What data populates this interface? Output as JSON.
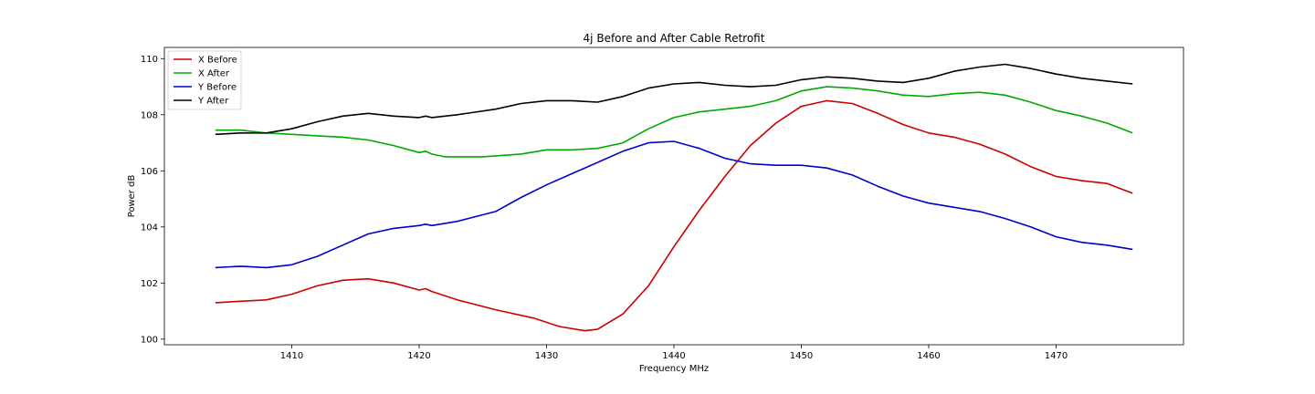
{
  "chart_data": {
    "type": "line",
    "title": "4j Before and After Cable Retrofit",
    "xlabel": "Frequency MHz",
    "ylabel": "Power dB",
    "xlim": [
      1400,
      1480
    ],
    "ylim": [
      99.8,
      110.4
    ],
    "xticks": [
      1410,
      1420,
      1430,
      1440,
      1450,
      1460,
      1470
    ],
    "yticks": [
      100,
      102,
      104,
      106,
      108,
      110
    ],
    "grid": false,
    "legend_position": "top-left",
    "series": [
      {
        "name": "X Before",
        "color": "#cc0000",
        "x": [
          1404,
          1406,
          1408,
          1410,
          1412,
          1414,
          1416,
          1418,
          1420,
          1420.5,
          1421,
          1423,
          1426,
          1429,
          1431,
          1433,
          1434,
          1436,
          1438,
          1440,
          1442,
          1444,
          1446,
          1448,
          1450,
          1452,
          1454,
          1456,
          1458,
          1460,
          1462,
          1464,
          1466,
          1468,
          1470,
          1472,
          1474,
          1476
        ],
        "y": [
          101.3,
          101.35,
          101.4,
          101.6,
          101.9,
          102.1,
          102.15,
          102.0,
          101.75,
          101.8,
          101.7,
          101.4,
          101.05,
          100.75,
          100.45,
          100.3,
          100.35,
          100.9,
          101.9,
          103.3,
          104.6,
          105.8,
          106.9,
          107.7,
          108.3,
          108.5,
          108.4,
          108.05,
          107.65,
          107.35,
          107.2,
          106.95,
          106.6,
          106.15,
          105.8,
          105.65,
          105.55,
          105.2
        ]
      },
      {
        "name": "X After",
        "color": "#00aa00",
        "x": [
          1404,
          1406,
          1408,
          1410,
          1412,
          1414,
          1416,
          1418,
          1420,
          1420.5,
          1421,
          1422,
          1425,
          1428,
          1430,
          1432,
          1434,
          1436,
          1438,
          1440,
          1442,
          1444,
          1446,
          1448,
          1450,
          1452,
          1454,
          1456,
          1458,
          1460,
          1462,
          1464,
          1466,
          1468,
          1470,
          1472,
          1474,
          1476
        ],
        "y": [
          107.45,
          107.45,
          107.35,
          107.3,
          107.25,
          107.2,
          107.1,
          106.9,
          106.65,
          106.7,
          106.6,
          106.5,
          106.5,
          106.6,
          106.75,
          106.75,
          106.8,
          107.0,
          107.5,
          107.9,
          108.1,
          108.2,
          108.3,
          108.5,
          108.85,
          109.0,
          108.95,
          108.85,
          108.7,
          108.65,
          108.75,
          108.8,
          108.7,
          108.45,
          108.15,
          107.95,
          107.7,
          107.35
        ]
      },
      {
        "name": "Y Before",
        "color": "#0000cc",
        "x": [
          1404,
          1406,
          1408,
          1410,
          1412,
          1414,
          1416,
          1418,
          1420,
          1420.5,
          1421,
          1423,
          1426,
          1428,
          1430,
          1432,
          1434,
          1436,
          1438,
          1440,
          1442,
          1444,
          1446,
          1448,
          1450,
          1452,
          1454,
          1456,
          1458,
          1460,
          1462,
          1464,
          1466,
          1468,
          1470,
          1472,
          1474,
          1476
        ],
        "y": [
          102.55,
          102.6,
          102.55,
          102.65,
          102.95,
          103.35,
          103.75,
          103.95,
          104.05,
          104.1,
          104.05,
          104.2,
          104.55,
          105.05,
          105.5,
          105.9,
          106.3,
          106.7,
          107.0,
          107.05,
          106.8,
          106.45,
          106.25,
          106.2,
          106.2,
          106.1,
          105.85,
          105.45,
          105.1,
          104.85,
          104.7,
          104.55,
          104.3,
          104.0,
          103.65,
          103.45,
          103.35,
          103.2
        ]
      },
      {
        "name": "Y After",
        "color": "#000000",
        "x": [
          1404,
          1406,
          1408,
          1410,
          1412,
          1414,
          1416,
          1418,
          1420,
          1420.5,
          1421,
          1423,
          1426,
          1428,
          1430,
          1432,
          1434,
          1436,
          1438,
          1440,
          1442,
          1444,
          1446,
          1448,
          1450,
          1452,
          1454,
          1456,
          1458,
          1460,
          1462,
          1464,
          1466,
          1468,
          1470,
          1472,
          1474,
          1476
        ],
        "y": [
          107.3,
          107.35,
          107.35,
          107.5,
          107.75,
          107.95,
          108.05,
          107.95,
          107.9,
          107.95,
          107.9,
          108.0,
          108.2,
          108.4,
          108.5,
          108.5,
          108.45,
          108.65,
          108.95,
          109.1,
          109.15,
          109.05,
          109.0,
          109.05,
          109.25,
          109.35,
          109.3,
          109.2,
          109.15,
          109.3,
          109.55,
          109.7,
          109.8,
          109.65,
          109.45,
          109.3,
          109.2,
          109.1
        ]
      }
    ]
  }
}
